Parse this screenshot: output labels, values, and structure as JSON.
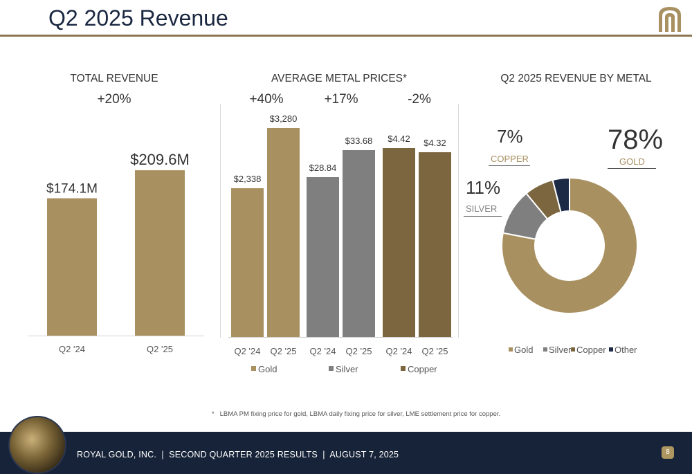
{
  "header": {
    "title": "Q2 2025 Revenue"
  },
  "colors": {
    "gold": "#a89060",
    "silver": "#7f7f7f",
    "copper": "#7b6640",
    "other": "#1d2a45",
    "navy": "#172338",
    "accent": "#8a7650"
  },
  "panels": {
    "total_revenue": {
      "title": "TOTAL REVENUE",
      "change": "+20%"
    },
    "metal_prices": {
      "title": "AVERAGE METAL PRICES*",
      "changes": [
        "+40%",
        "+17%",
        "-2%"
      ]
    },
    "revenue_by_metal": {
      "title": "Q2 2025 REVENUE BY METAL",
      "callouts": {
        "gold": {
          "pct": "78%",
          "name": "GOLD"
        },
        "copper": {
          "pct": "7%",
          "name": "COPPER"
        },
        "silver": {
          "pct": "11%",
          "name": "SILVER"
        }
      }
    }
  },
  "chart_data": [
    {
      "type": "bar",
      "title": "TOTAL REVENUE",
      "categories": [
        "Q2 '24",
        "Q2 '25"
      ],
      "values": [
        174.1,
        209.6
      ],
      "data_labels": [
        "$174.1M",
        "$209.6M"
      ],
      "ylim": [
        0,
        250
      ],
      "annotation": "+20%"
    },
    {
      "type": "bar",
      "title": "AVERAGE METAL PRICES*",
      "groups": [
        {
          "name": "Gold",
          "categories": [
            "Q2 '24",
            "Q2 '25"
          ],
          "labels": [
            "$2,338",
            "$3,280"
          ],
          "change": "+40%"
        },
        {
          "name": "Silver",
          "categories": [
            "Q2 '24",
            "Q2 '25"
          ],
          "labels": [
            "$28.84",
            "$33.68"
          ],
          "change": "+17%"
        },
        {
          "name": "Copper",
          "categories": [
            "Q2 '24",
            "Q2 '25"
          ],
          "labels": [
            "$4.42",
            "$4.32"
          ],
          "change": "-2%"
        }
      ],
      "legend": [
        "Gold",
        "Silver",
        "Copper"
      ]
    },
    {
      "type": "pie",
      "title": "Q2 2025 REVENUE BY METAL",
      "slices": [
        {
          "name": "Gold",
          "value": 78
        },
        {
          "name": "Silver",
          "value": 11
        },
        {
          "name": "Copper",
          "value": 7
        },
        {
          "name": "Other",
          "value": 4
        }
      ],
      "legend": [
        "Gold",
        "Silver",
        "Copper",
        "Other"
      ],
      "legend_placement": "bottom"
    }
  ],
  "footnote": {
    "marker": "*",
    "text": "LBMA PM fixing price for gold, LBMA daily fixing price for silver, LME settlement price for copper."
  },
  "footer": {
    "text": "ROYAL GOLD, INC.  |  SECOND QUARTER 2025 RESULTS  |  AUGUST 7, 2025",
    "page": "8"
  }
}
